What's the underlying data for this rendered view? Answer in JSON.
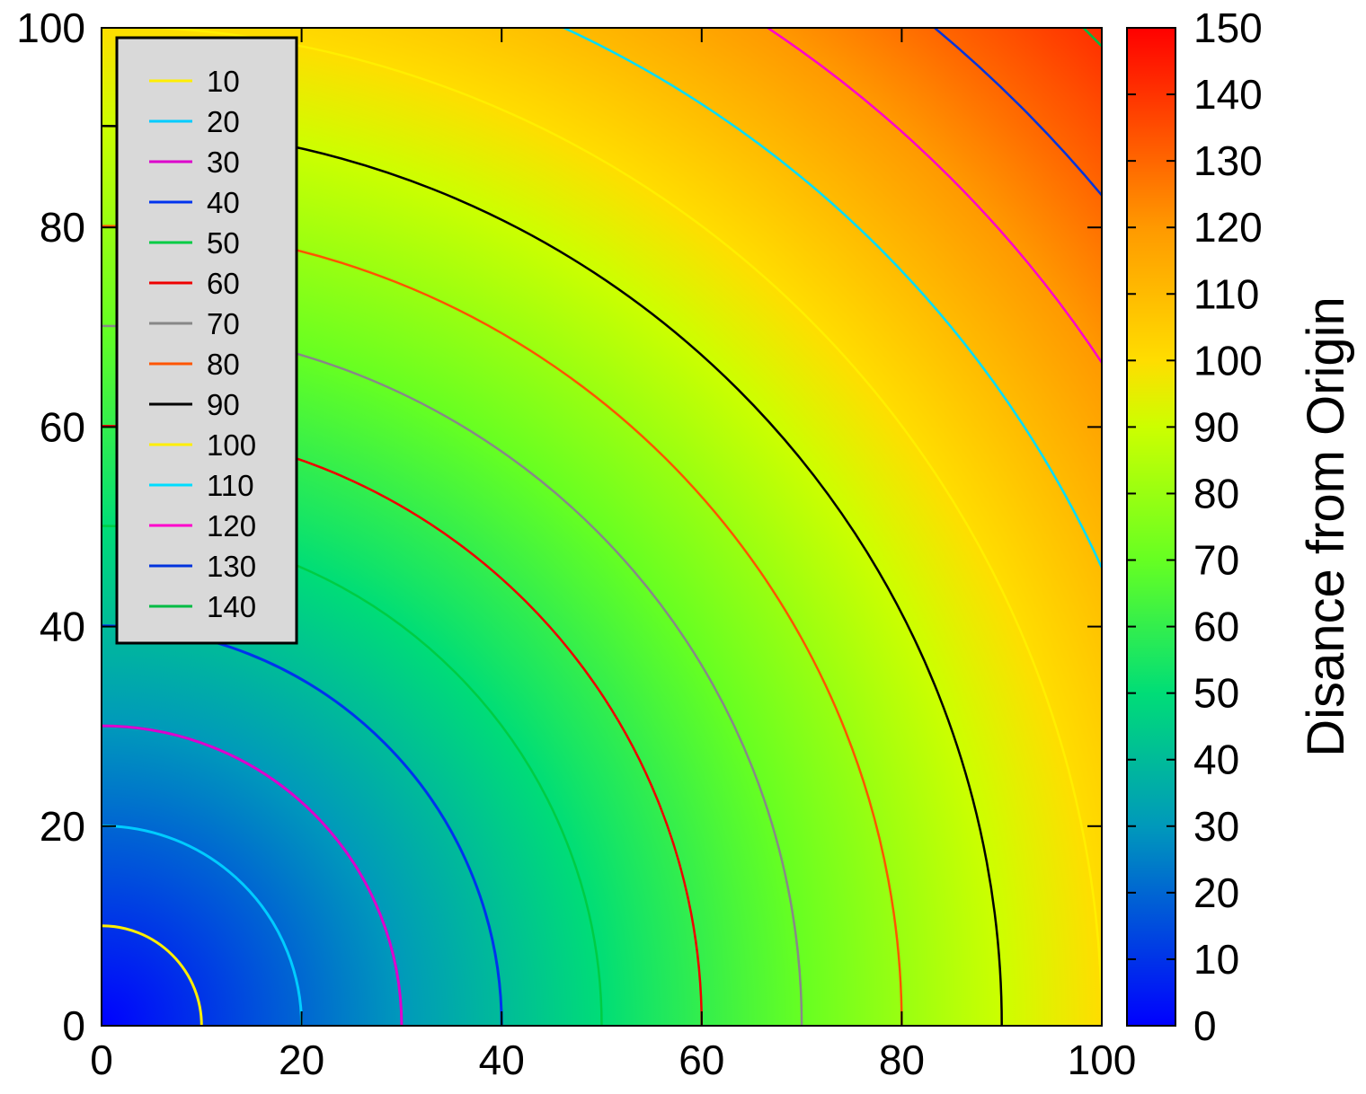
{
  "chart_data": {
    "type": "heatmap",
    "function": "distance from origin",
    "xlim": [
      0,
      100
    ],
    "ylim": [
      0,
      100
    ],
    "x_ticks": [
      0,
      20,
      40,
      60,
      80,
      100
    ],
    "y_ticks": [
      0,
      20,
      40,
      60,
      80,
      100
    ],
    "x_tick_labels": [
      "0",
      "20",
      "40",
      "60",
      "80",
      "100"
    ],
    "y_tick_labels": [
      "0",
      "20",
      "40",
      "60",
      "80",
      "100"
    ],
    "xlabel": "",
    "ylabel": "",
    "grid": false,
    "colorbar": {
      "label": "Disance from Origin",
      "range": [
        0,
        150
      ],
      "ticks": [
        0,
        10,
        20,
        30,
        40,
        50,
        60,
        70,
        80,
        90,
        100,
        110,
        120,
        130,
        140,
        150
      ],
      "tick_labels": [
        "0",
        "10",
        "20",
        "30",
        "40",
        "50",
        "60",
        "70",
        "80",
        "90",
        "100",
        "110",
        "120",
        "130",
        "140",
        "150"
      ],
      "colormap": [
        {
          "v": 0,
          "color": "#0000ff"
        },
        {
          "v": 30,
          "color": "#0099bb"
        },
        {
          "v": 50,
          "color": "#00dd77"
        },
        {
          "v": 70,
          "color": "#66ff22"
        },
        {
          "v": 90,
          "color": "#ccff00"
        },
        {
          "v": 100,
          "color": "#ffdd00"
        },
        {
          "v": 120,
          "color": "#ff9900"
        },
        {
          "v": 150,
          "color": "#ff0000"
        }
      ]
    },
    "contours": [
      {
        "level": 10,
        "label": "10",
        "color": "#ffee00"
      },
      {
        "level": 20,
        "label": "20",
        "color": "#00ccff"
      },
      {
        "level": 30,
        "label": "30",
        "color": "#dd00cc"
      },
      {
        "level": 40,
        "label": "40",
        "color": "#0033ee"
      },
      {
        "level": 50,
        "label": "50",
        "color": "#00cc44"
      },
      {
        "level": 60,
        "label": "60",
        "color": "#ee0000"
      },
      {
        "level": 70,
        "label": "70",
        "color": "#888888"
      },
      {
        "level": 80,
        "label": "80",
        "color": "#ff5500"
      },
      {
        "level": 90,
        "label": "90",
        "color": "#000000"
      },
      {
        "level": 100,
        "label": "100",
        "color": "#ffee00"
      },
      {
        "level": 110,
        "label": "110",
        "color": "#00ddff"
      },
      {
        "level": 120,
        "label": "120",
        "color": "#ff00cc"
      },
      {
        "level": 130,
        "label": "130",
        "color": "#0033dd"
      },
      {
        "level": 140,
        "label": "140",
        "color": "#00bb44"
      }
    ],
    "legend_position": "top-left"
  }
}
